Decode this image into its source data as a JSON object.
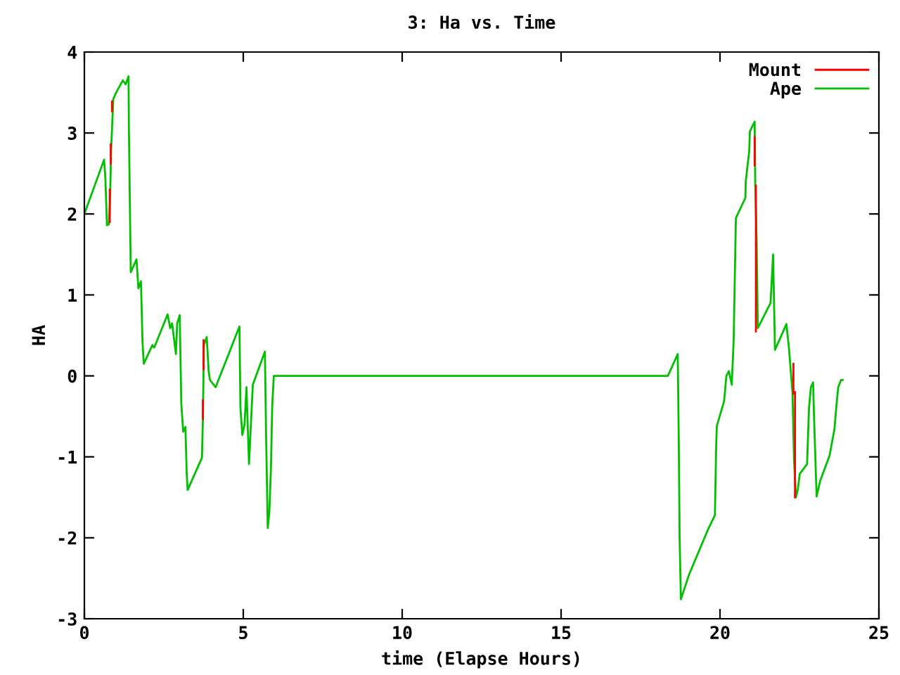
{
  "chart_data": {
    "type": "line",
    "title": "3: Ha vs. Time",
    "xlabel": "time (Elapse Hours)",
    "ylabel": "HA",
    "xlim": [
      0,
      25
    ],
    "xticks": [
      0,
      5,
      10,
      15,
      20,
      25
    ],
    "ylim": [
      -3,
      4
    ],
    "yticks": [
      -3,
      -2,
      -1,
      0,
      1,
      2,
      3,
      4
    ],
    "grid": false,
    "legend": "top right",
    "marker": "none",
    "line_style": "solid",
    "series": [
      {
        "name": "Mount",
        "color": "#ff0000",
        "x": [
          0.8,
          0.8,
          0.81,
          0.83,
          0.83,
          0.84,
          0.87,
          0.87,
          0.88,
          3.73,
          3.73,
          3.74,
          3.75,
          3.75,
          3.76,
          21.09,
          21.09,
          21.1,
          21.13,
          21.13,
          21.14,
          22.31,
          22.31,
          22.32,
          22.36,
          22.36
        ],
        "values": [
          1.9,
          2.3,
          null,
          2.62,
          2.86,
          null,
          3.27,
          3.39,
          null,
          -0.53,
          -0.3,
          null,
          0.08,
          0.44,
          null,
          2.6,
          2.95,
          null,
          0.55,
          2.35,
          null,
          -0.22,
          0.15,
          null,
          -1.5,
          -0.2
        ]
      },
      {
        "name": "Ape",
        "color": "#00c000",
        "x": [
          0,
          0.62,
          0.66,
          0.71,
          0.77,
          0.81,
          0.84,
          0.91,
          1.0,
          1.21,
          1.3,
          1.39,
          1.4,
          1.44,
          1.46,
          1.64,
          1.7,
          1.78,
          1.83,
          1.87,
          2.14,
          2.2,
          2.62,
          2.7,
          2.76,
          2.88,
          2.92,
          3.0,
          3.05,
          3.11,
          3.18,
          3.22,
          3.25,
          3.7,
          3.73,
          3.76,
          3.85,
          3.91,
          3.95,
          4.13,
          4.88,
          4.91,
          4.97,
          5.04,
          5.1,
          5.18,
          5.24,
          5.3,
          5.68,
          5.72,
          5.77,
          5.82,
          5.87,
          5.91,
          5.96,
          18.36,
          18.67,
          18.7,
          18.73,
          18.77,
          19.03,
          19.62,
          19.84,
          19.88,
          19.9,
          20.13,
          20.2,
          20.28,
          20.37,
          20.43,
          20.5,
          20.8,
          20.81,
          20.92,
          20.94,
          21.09,
          21.11,
          21.15,
          21.19,
          21.59,
          21.65,
          21.67,
          21.73,
          22.09,
          22.17,
          22.28,
          22.33,
          22.39,
          22.45,
          22.51,
          22.74,
          22.8,
          22.86,
          22.93,
          22.95,
          23.04,
          23.15,
          23.45,
          23.6,
          23.67,
          23.72,
          23.81,
          23.86
        ],
        "values": [
          2.0,
          2.67,
          2.45,
          1.86,
          1.87,
          2.2,
          2.78,
          3.42,
          3.5,
          3.65,
          3.6,
          3.7,
          3.09,
          1.87,
          1.28,
          1.44,
          1.08,
          1.17,
          0.41,
          0.15,
          0.38,
          0.35,
          0.76,
          0.59,
          0.65,
          0.27,
          0.65,
          0.75,
          -0.34,
          -0.69,
          -0.63,
          -1.21,
          -1.41,
          -1.01,
          -0.52,
          0.38,
          0.48,
          0.06,
          -0.05,
          -0.14,
          0.61,
          -0.39,
          -0.73,
          -0.6,
          -0.14,
          -1.09,
          -0.6,
          -0.11,
          0.3,
          -0.78,
          -1.88,
          -1.68,
          -1.15,
          -0.38,
          0.0,
          0.0,
          0.27,
          -0.7,
          -2.01,
          -2.76,
          -2.45,
          -1.9,
          -1.72,
          -0.86,
          -0.62,
          -0.31,
          0.0,
          0.06,
          -0.11,
          0.44,
          1.95,
          2.2,
          2.4,
          2.78,
          3.02,
          3.14,
          2.35,
          1.71,
          0.59,
          0.9,
          1.34,
          1.5,
          0.32,
          0.64,
          0.34,
          -0.2,
          -1.04,
          -1.5,
          -1.4,
          -1.21,
          -1.09,
          -0.4,
          -0.14,
          -0.08,
          -0.4,
          -1.49,
          -1.3,
          -0.98,
          -0.66,
          -0.34,
          -0.14,
          -0.05,
          -0.05
        ]
      }
    ]
  }
}
